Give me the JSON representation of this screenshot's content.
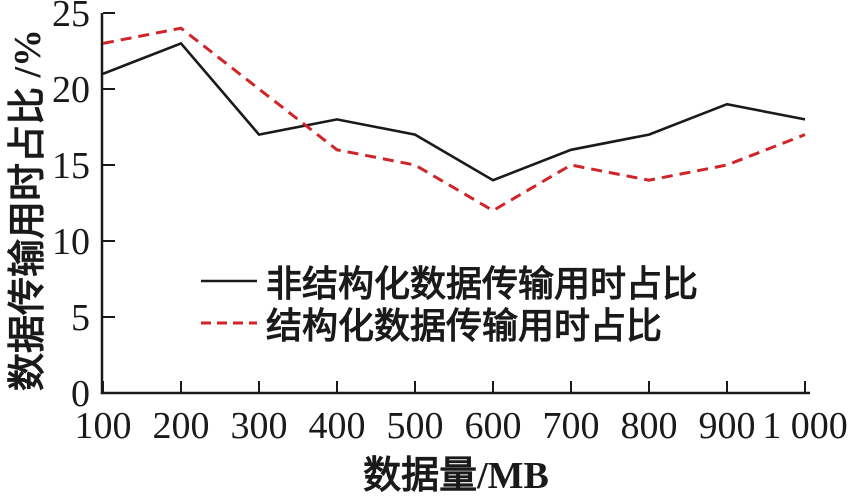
{
  "chart_data": {
    "type": "line",
    "title": "",
    "xlabel": "数据量/MB",
    "ylabel": "数据传输用时占比 /%",
    "x": [
      100,
      200,
      300,
      400,
      500,
      600,
      700,
      800,
      900,
      1000
    ],
    "x_tick_labels": [
      "100",
      "200",
      "300",
      "400",
      "500",
      "600",
      "700",
      "800",
      "900",
      "1 000"
    ],
    "y_ticks": [
      0,
      5,
      10,
      15,
      20,
      25
    ],
    "xlim": [
      100,
      1000
    ],
    "ylim": [
      0,
      25
    ],
    "grid": false,
    "legend_position": "inside-lower-left",
    "axis_color": "#1a1a1a",
    "series": [
      {
        "key": "unstructured",
        "name": "非结构化数据传输用时占比",
        "color": "#1a1a1a",
        "style": "solid",
        "values": [
          21,
          23,
          17,
          18,
          17,
          14,
          16,
          17,
          19,
          18
        ]
      },
      {
        "key": "structured",
        "name": "结构化数据传输用时占比",
        "color": "#d02428",
        "style": "dashed",
        "values": [
          23,
          24,
          20,
          16,
          15,
          12,
          15,
          14,
          15,
          17
        ]
      }
    ]
  }
}
